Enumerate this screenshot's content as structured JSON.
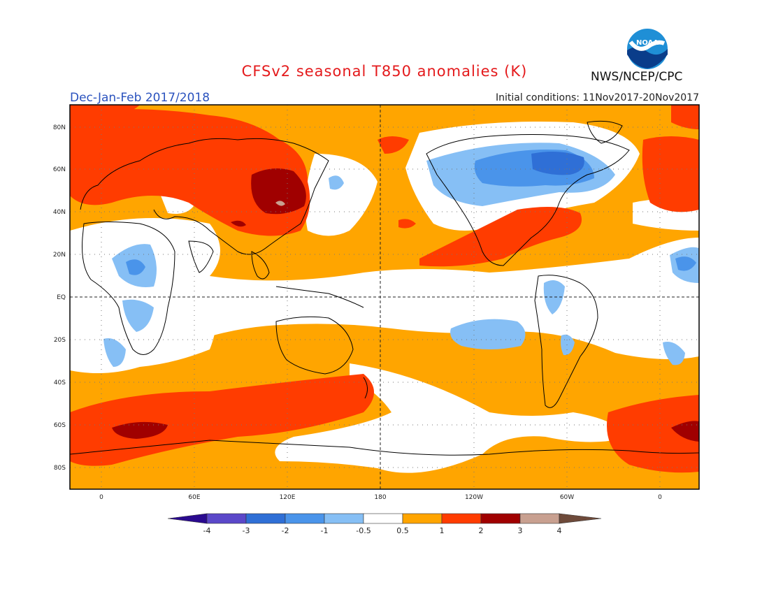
{
  "title": "CFSv2 seasonal T850 anomalies (K)",
  "season": "Dec-Jan-Feb 2017/2018",
  "initial_conditions": "Initial conditions: 11Nov2017-20Nov2017",
  "agency": "NWS/NCEP/CPC",
  "logo_text": "NOAA",
  "colors": {
    "c_lt_m4": "#2a0a8f",
    "c_m4_m3": "#5b48c9",
    "c_m3_m2": "#2f6fd6",
    "c_m2_m1": "#4a94ea",
    "c_m1_m05": "#86bff5",
    "c_neutral": "#ffffff",
    "c_05_1": "#ffa500",
    "c_1_2": "#ff3c00",
    "c_2_3": "#a00000",
    "c_3_4": "#c8a090",
    "c_gt_4": "#6e4a3a"
  },
  "map": {
    "lat_labels": [
      "80N",
      "60N",
      "40N",
      "20N",
      "EQ",
      "20S",
      "40S",
      "60S",
      "80S"
    ],
    "lon_labels": [
      "0",
      "60E",
      "120E",
      "180",
      "120W",
      "60W",
      "0"
    ]
  },
  "colorbar": {
    "labels": [
      "-4",
      "-3",
      "-2",
      "-1",
      "-0.5",
      "0.5",
      "1",
      "2",
      "3",
      "4"
    ]
  }
}
